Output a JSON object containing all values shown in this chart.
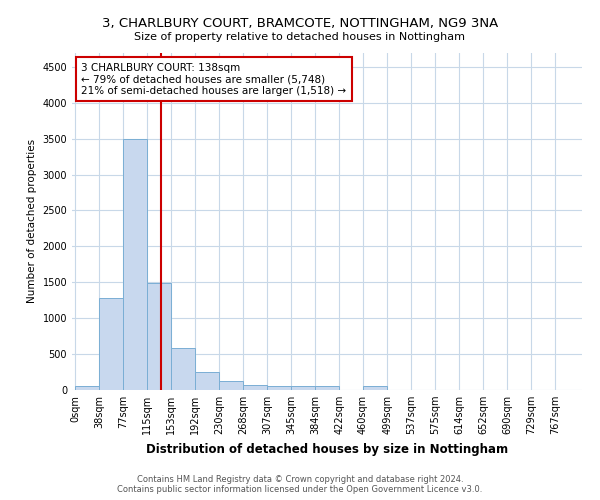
{
  "title": "3, CHARLBURY COURT, BRAMCOTE, NOTTINGHAM, NG9 3NA",
  "subtitle": "Size of property relative to detached houses in Nottingham",
  "xlabel": "Distribution of detached houses by size in Nottingham",
  "ylabel": "Number of detached properties",
  "bin_labels": [
    "0sqm",
    "38sqm",
    "77sqm",
    "115sqm",
    "153sqm",
    "192sqm",
    "230sqm",
    "268sqm",
    "307sqm",
    "345sqm",
    "384sqm",
    "422sqm",
    "460sqm",
    "499sqm",
    "537sqm",
    "575sqm",
    "614sqm",
    "652sqm",
    "690sqm",
    "729sqm",
    "767sqm"
  ],
  "bin_edges": [
    0,
    38,
    77,
    115,
    153,
    192,
    230,
    268,
    307,
    345,
    384,
    422,
    460,
    499,
    537,
    575,
    614,
    652,
    690,
    729,
    767
  ],
  "bar_heights": [
    50,
    1280,
    3500,
    1490,
    590,
    250,
    130,
    65,
    60,
    50,
    50,
    0,
    50,
    0,
    0,
    0,
    0,
    0,
    0,
    0
  ],
  "bar_color": "#c8d8ee",
  "bar_edgecolor": "#7aaed4",
  "property_size": 138,
  "vline_color": "#cc0000",
  "annotation_box_edgecolor": "#cc0000",
  "annotation_text_line1": "3 CHARLBURY COURT: 138sqm",
  "annotation_text_line2": "← 79% of detached houses are smaller (5,748)",
  "annotation_text_line3": "21% of semi-detached houses are larger (1,518) →",
  "ylim": [
    0,
    4700
  ],
  "yticks": [
    0,
    500,
    1000,
    1500,
    2000,
    2500,
    3000,
    3500,
    4000,
    4500
  ],
  "footer_line1": "Contains HM Land Registry data © Crown copyright and database right 2024.",
  "footer_line2": "Contains public sector information licensed under the Open Government Licence v3.0.",
  "background_color": "#ffffff",
  "grid_color": "#c8d8e8"
}
